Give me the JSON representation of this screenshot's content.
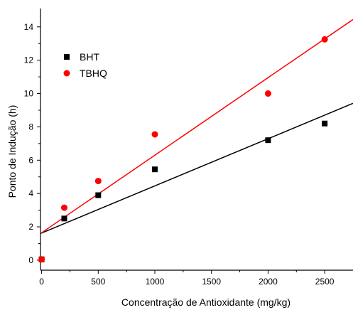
{
  "chart_data": {
    "type": "scatter",
    "xlabel": "Concentração de Antioxidante (mg/kg)",
    "ylabel": "Ponto de Indução (h)",
    "xlim": [
      -10,
      2750
    ],
    "ylim": [
      -0.6,
      15.1
    ],
    "x_ticks": [
      0,
      500,
      1000,
      1500,
      2000,
      2500
    ],
    "y_ticks": [
      0,
      2,
      4,
      6,
      8,
      10,
      12,
      14
    ],
    "legend_position": "top-left",
    "grid": false,
    "series": [
      {
        "name": "BHT",
        "marker": "square",
        "color": "#000000",
        "points": [
          [
            0,
            0.05
          ],
          [
            200,
            2.5
          ],
          [
            500,
            3.9
          ],
          [
            1000,
            5.45
          ],
          [
            2000,
            7.2
          ],
          [
            2500,
            8.2
          ]
        ],
        "fit": {
          "intercept": 1.6,
          "slope": 0.00284
        }
      },
      {
        "name": "TBHQ",
        "marker": "circle",
        "color": "#ff0000",
        "points": [
          [
            0,
            0.05
          ],
          [
            200,
            3.15
          ],
          [
            500,
            4.75
          ],
          [
            1000,
            7.55
          ],
          [
            2000,
            10.0
          ],
          [
            2500,
            13.25
          ]
        ],
        "fit": {
          "intercept": 1.6,
          "slope": 0.00467
        }
      }
    ]
  }
}
